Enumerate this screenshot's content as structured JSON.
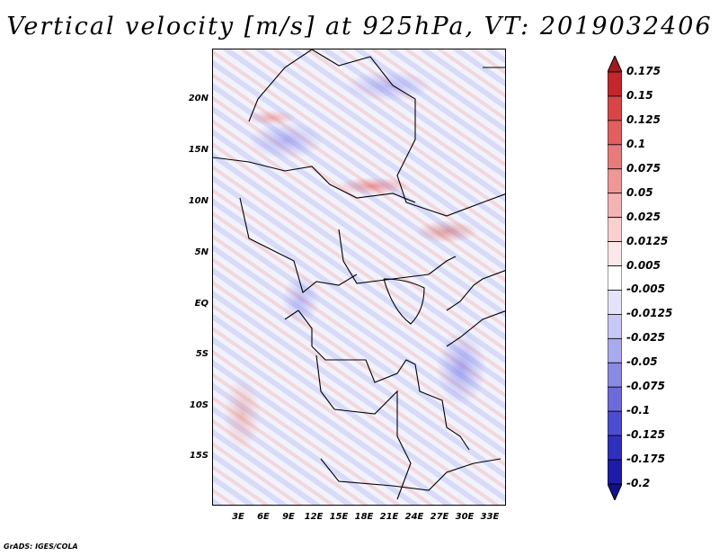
{
  "title": "Vertical velocity [m/s] at 925hPa, VT: 2019032406",
  "map": {
    "y_ticks": [
      "20N",
      "15N",
      "10N",
      "5N",
      "EQ",
      "5S",
      "10S",
      "15S"
    ],
    "x_ticks": [
      "3E",
      "6E",
      "9E",
      "12E",
      "15E",
      "18E",
      "21E",
      "24E",
      "27E",
      "30E",
      "33E"
    ]
  },
  "colorbar": {
    "labels": [
      "0.175",
      "0.15",
      "0.125",
      "0.1",
      "0.075",
      "0.05",
      "0.025",
      "0.0125",
      "0.005",
      "-0.005",
      "-0.0125",
      "-0.025",
      "-0.05",
      "-0.075",
      "-0.1",
      "-0.125",
      "-0.175",
      "-0.2"
    ],
    "colors": [
      "#a31a1e",
      "#c3262b",
      "#d94545",
      "#e35e5e",
      "#e97a7a",
      "#ef9797",
      "#f4b4b4",
      "#f8d0d0",
      "#fce8e8",
      "#ffffff",
      "#e3e3fb",
      "#c8c8f5",
      "#a9a9ee",
      "#8a8ae6",
      "#6b6bdc",
      "#4c4cd0",
      "#3030be",
      "#1c1ca8",
      "#111190"
    ]
  },
  "credit": "GrADS: IGES/COLA"
}
